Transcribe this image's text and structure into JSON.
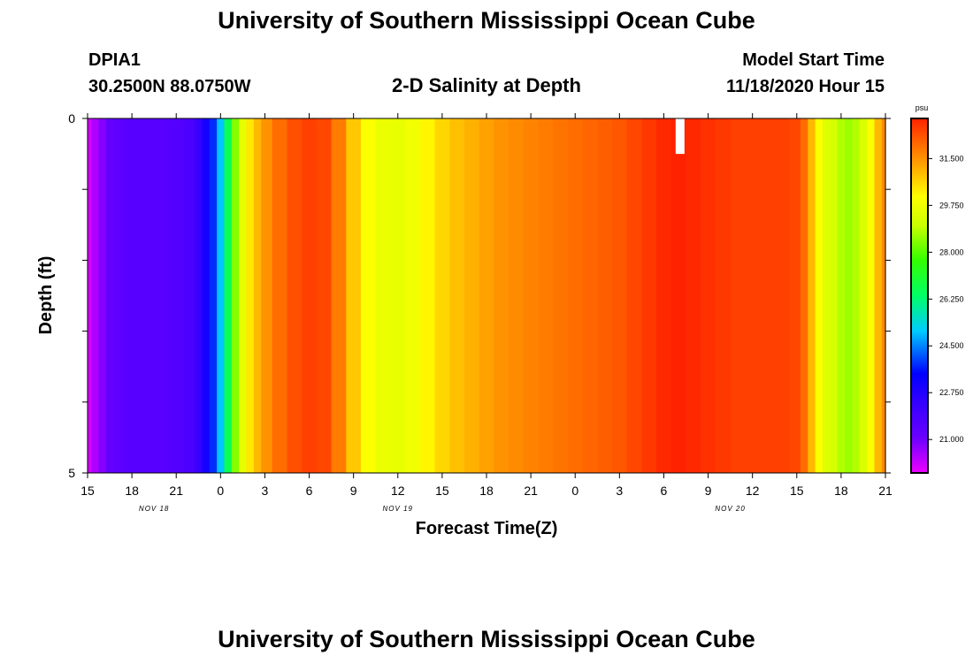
{
  "header": {
    "title": "University of Southern Mississippi Ocean Cube",
    "station_id": "DPIA1",
    "coordinates": "30.2500N 88.0750W",
    "plot_title": "2-D Salinity at Depth",
    "model_start_label": "Model Start Time",
    "model_start_value": "11/18/2020 Hour 15"
  },
  "footer": {
    "title": "University of Southern Mississippi Ocean Cube"
  },
  "colors": {
    "background": "#ffffff",
    "missing": "#ffffff"
  },
  "chart_data": {
    "type": "heatmap",
    "title": "2-D Salinity at Depth",
    "xlabel": "Forecast Time(Z)",
    "ylabel": "Depth (ft)",
    "units": "psu",
    "x_hours_since_start": [
      0,
      54
    ],
    "x_tick_labels": [
      "15",
      "18",
      "21",
      "0",
      "3",
      "6",
      "9",
      "12",
      "15",
      "18",
      "21",
      "0",
      "3",
      "6",
      "9",
      "12",
      "15",
      "18",
      "21"
    ],
    "x_tick_hours": [
      0,
      3,
      6,
      9,
      12,
      15,
      18,
      21,
      24,
      27,
      30,
      33,
      36,
      39,
      42,
      45,
      48,
      51,
      54
    ],
    "date_labels": [
      {
        "text": "NOV 18",
        "hour": 4.5
      },
      {
        "text": "NOV 19",
        "hour": 21
      },
      {
        "text": "NOV 20",
        "hour": 43.5
      }
    ],
    "ylim": [
      0,
      5
    ],
    "y_tick_labels": [
      "0",
      "5"
    ],
    "colorbar": {
      "range": [
        19.75,
        33.0
      ],
      "ticks": [
        "31.500",
        "29.750",
        "28.000",
        "26.250",
        "24.500",
        "22.750",
        "21.000"
      ],
      "tick_values": [
        31.5,
        29.75,
        28.0,
        26.25,
        24.5,
        22.75,
        21.0
      ]
    },
    "columns": [
      {
        "hour": 0.0,
        "value": 20.0
      },
      {
        "hour": 0.5,
        "value": 20.4
      },
      {
        "hour": 1.0,
        "value": 20.8
      },
      {
        "hour": 1.5,
        "value": 21.2
      },
      {
        "hour": 2.0,
        "value": 21.4
      },
      {
        "hour": 3.0,
        "value": 21.5
      },
      {
        "hour": 4.0,
        "value": 21.5
      },
      {
        "hour": 5.0,
        "value": 21.5
      },
      {
        "hour": 6.0,
        "value": 21.6
      },
      {
        "hour": 7.0,
        "value": 21.8
      },
      {
        "hour": 7.5,
        "value": 22.3
      },
      {
        "hour": 8.0,
        "value": 23.0
      },
      {
        "hour": 8.5,
        "value": 23.8
      },
      {
        "hour": 9.0,
        "value": 25.0
      },
      {
        "hour": 9.5,
        "value": 26.6
      },
      {
        "hour": 10.0,
        "value": 28.4
      },
      {
        "hour": 10.5,
        "value": 29.6
      },
      {
        "hour": 11.0,
        "value": 30.4
      },
      {
        "hour": 11.5,
        "value": 31.0
      },
      {
        "hour": 12.0,
        "value": 31.5
      },
      {
        "hour": 13.0,
        "value": 32.0
      },
      {
        "hour": 14.0,
        "value": 32.4
      },
      {
        "hour": 15.0,
        "value": 32.6
      },
      {
        "hour": 16.0,
        "value": 32.5
      },
      {
        "hour": 17.0,
        "value": 31.8
      },
      {
        "hour": 18.0,
        "value": 30.8
      },
      {
        "hour": 19.0,
        "value": 30.0
      },
      {
        "hour": 20.0,
        "value": 29.7
      },
      {
        "hour": 21.0,
        "value": 29.6
      },
      {
        "hour": 22.0,
        "value": 29.8
      },
      {
        "hour": 23.0,
        "value": 30.2
      },
      {
        "hour": 24.0,
        "value": 30.6
      },
      {
        "hour": 25.0,
        "value": 30.9
      },
      {
        "hour": 26.0,
        "value": 31.1
      },
      {
        "hour": 27.0,
        "value": 31.3
      },
      {
        "hour": 28.0,
        "value": 31.5
      },
      {
        "hour": 29.0,
        "value": 31.6
      },
      {
        "hour": 30.0,
        "value": 31.7
      },
      {
        "hour": 31.0,
        "value": 31.8
      },
      {
        "hour": 32.0,
        "value": 31.9
      },
      {
        "hour": 33.0,
        "value": 32.0
      },
      {
        "hour": 34.0,
        "value": 32.1
      },
      {
        "hour": 35.0,
        "value": 32.2
      },
      {
        "hour": 36.0,
        "value": 32.3
      },
      {
        "hour": 37.0,
        "value": 32.5
      },
      {
        "hour": 38.0,
        "value": 32.7
      },
      {
        "hour": 39.0,
        "value": 32.9
      },
      {
        "hour": 40.0,
        "value": 33.0
      },
      {
        "hour": 41.0,
        "value": 32.9
      },
      {
        "hour": 42.0,
        "value": 32.8
      },
      {
        "hour": 43.0,
        "value": 32.7
      },
      {
        "hour": 44.0,
        "value": 32.6
      },
      {
        "hour": 45.0,
        "value": 32.6
      },
      {
        "hour": 46.0,
        "value": 32.6
      },
      {
        "hour": 47.0,
        "value": 32.6
      },
      {
        "hour": 48.0,
        "value": 32.5
      },
      {
        "hour": 48.5,
        "value": 32.0
      },
      {
        "hour": 49.0,
        "value": 31.0
      },
      {
        "hour": 49.5,
        "value": 30.0
      },
      {
        "hour": 50.0,
        "value": 29.4
      },
      {
        "hour": 50.5,
        "value": 29.2
      },
      {
        "hour": 51.0,
        "value": 28.8
      },
      {
        "hour": 51.5,
        "value": 28.6
      },
      {
        "hour": 52.0,
        "value": 28.8
      },
      {
        "hour": 52.5,
        "value": 29.3
      },
      {
        "hour": 53.0,
        "value": 30.0
      },
      {
        "hour": 53.5,
        "value": 31.0
      },
      {
        "hour": 54.0,
        "value": 31.6
      }
    ],
    "missing_segment": {
      "hour_start": 39.8,
      "hour_end": 40.4,
      "depth_start": 0,
      "depth_end": 0.5
    }
  }
}
